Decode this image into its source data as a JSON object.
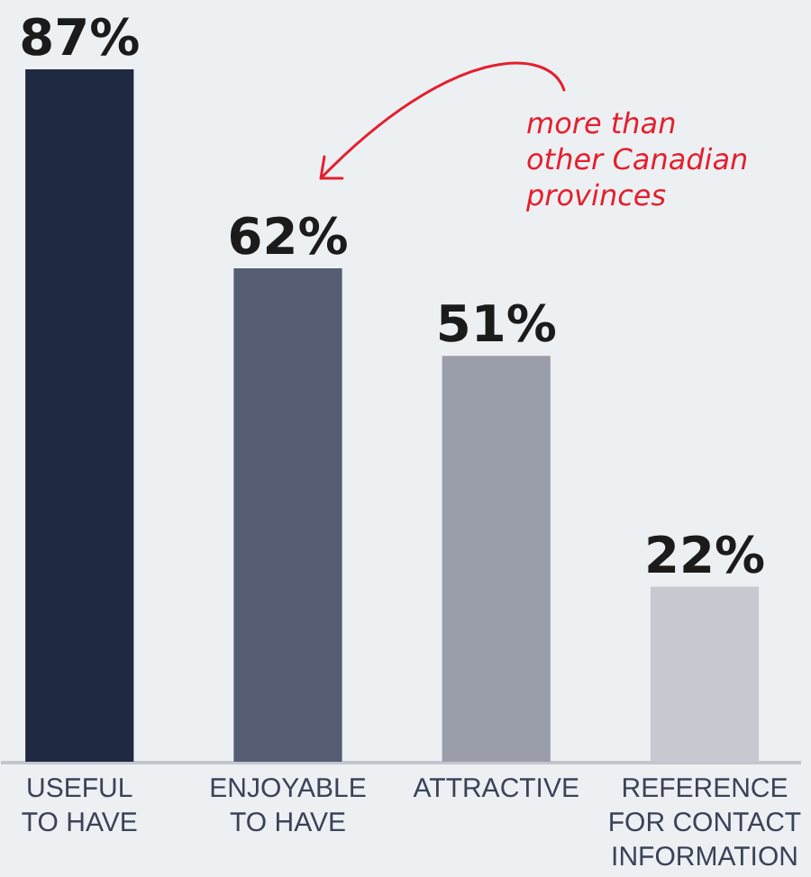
{
  "chart_data": {
    "type": "bar",
    "categories": [
      "USEFUL\nTO HAVE",
      "ENJOYABLE\nTO HAVE",
      "ATTRACTIVE",
      "REFERENCE\nFOR CONTACT\nINFORMATION"
    ],
    "values": [
      87,
      62,
      51,
      22
    ],
    "colors": [
      "#1f2942",
      "#545d71",
      "#9a9eaa",
      "#c7c9d0"
    ],
    "value_labels": [
      "87%",
      "62%",
      "51%",
      "22%"
    ],
    "annotations": [
      "more than\nother Canadian\nprovinces"
    ]
  }
}
